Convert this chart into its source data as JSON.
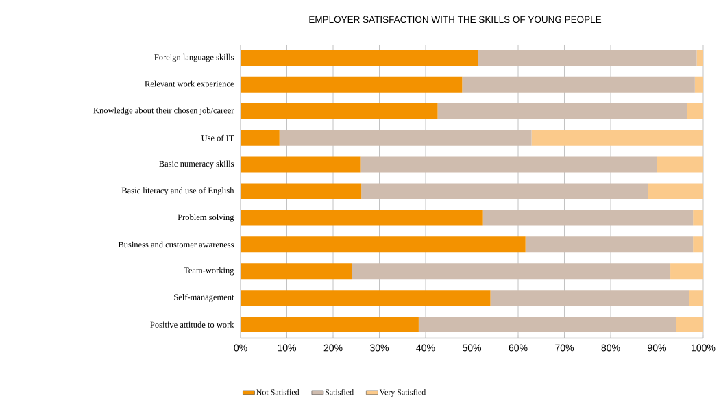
{
  "chart_data": {
    "type": "bar",
    "orientation": "horizontal",
    "stacked": true,
    "title": "EMPLOYER SATISFACTION WITH THE SKILLS OF YOUNG PEOPLE",
    "categories": [
      "Foreign language skills",
      "Relevant work experience",
      "Knowledge about their chosen job/career",
      "Use of IT",
      "Basic numeracy skills",
      "Basic literacy and use of English",
      "Problem solving",
      "Business and customer awareness",
      "Team-working",
      "Self-management",
      "Positive attitude to work"
    ],
    "series": [
      {
        "name": "Not Satisfied",
        "color": "#f39200",
        "values": [
          51.3,
          47.9,
          42.6,
          8.4,
          26.0,
          26.1,
          52.4,
          61.6,
          24.1,
          54.0,
          38.5
        ]
      },
      {
        "name": "Satisfied",
        "color": "#cfbcae",
        "values": [
          47.3,
          50.3,
          53.9,
          54.5,
          64.0,
          61.9,
          45.4,
          36.2,
          68.8,
          42.9,
          55.7
        ]
      },
      {
        "name": "Very Satisfied",
        "color": "#fbca8b",
        "values": [
          1.4,
          1.8,
          3.5,
          37.1,
          10.0,
          12.0,
          2.2,
          2.2,
          7.1,
          3.1,
          5.8
        ]
      }
    ],
    "xlim": [
      0,
      100
    ],
    "xticks": [
      {
        "value": 0,
        "label": "0%"
      },
      {
        "value": 10,
        "label": "10%"
      },
      {
        "value": 20,
        "label": "20%"
      },
      {
        "value": 30,
        "label": "30%"
      },
      {
        "value": 40,
        "label": "40%"
      },
      {
        "value": 50,
        "label": "50%"
      },
      {
        "value": 60,
        "label": "60%"
      },
      {
        "value": 70,
        "label": "70%"
      },
      {
        "value": 80,
        "label": "80%"
      },
      {
        "value": 90,
        "label": "90%"
      },
      {
        "value": 100,
        "label": "100%"
      }
    ],
    "grid": "x",
    "legend": "bottom"
  }
}
